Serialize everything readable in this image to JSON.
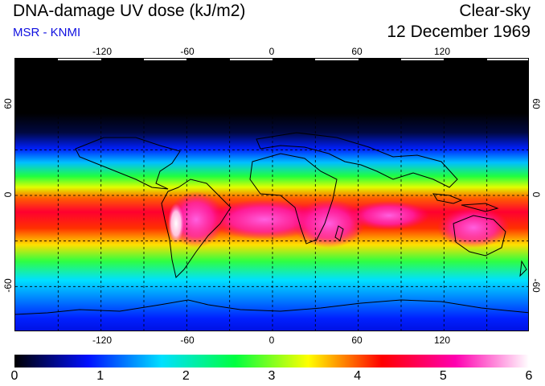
{
  "header": {
    "title": "DNA-damage UV dose (kJ/m2)",
    "source": "MSR - KNMI",
    "sky_condition": "Clear-sky",
    "date": "12 December 1969"
  },
  "map": {
    "projection": "equirectangular",
    "lon_range": [
      -180,
      180
    ],
    "lat_range": [
      -90,
      90
    ],
    "lon_tick_labels": [
      "-120",
      "-60",
      "0",
      "60",
      "120"
    ],
    "lat_tick_labels": [
      "60",
      "0",
      "-60"
    ],
    "grid": "dashed, 30 degree spacing"
  },
  "colorbar": {
    "min": 0,
    "max": 6,
    "tick_labels": [
      "0",
      "1",
      "2",
      "3",
      "4",
      "5",
      "6"
    ],
    "colors": [
      "#000000",
      "#0010ff",
      "#00e0ff",
      "#00ff40",
      "#ffff00",
      "#ff0000",
      "#ff00b0",
      "#ffffff"
    ]
  },
  "colors": {
    "source_text": "#1010e0",
    "coastline": "#000000",
    "grid": "#000000"
  }
}
